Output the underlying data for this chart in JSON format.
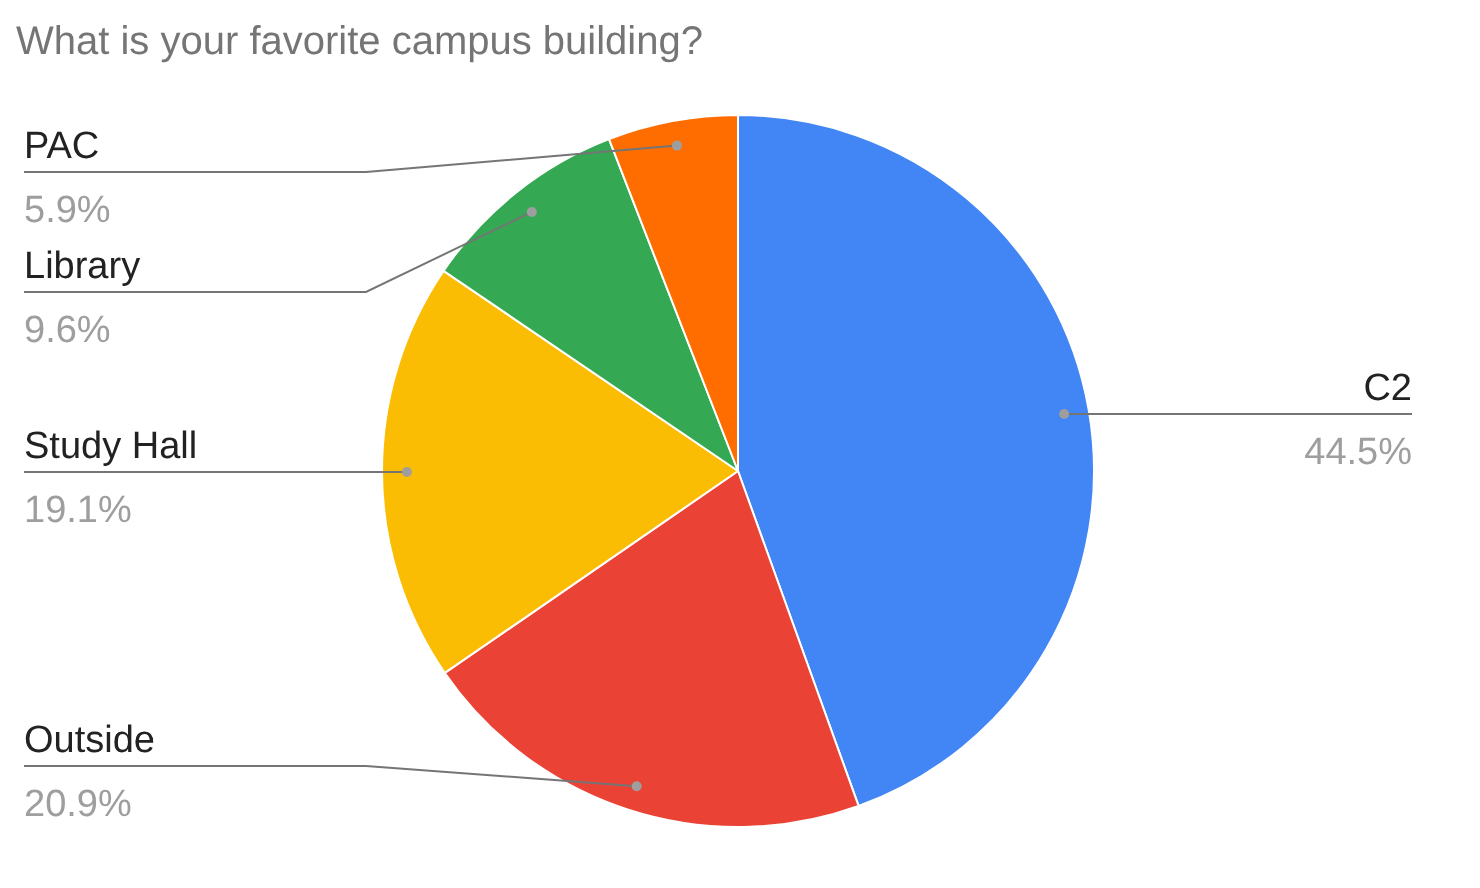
{
  "chart_data": {
    "type": "pie",
    "title": "What is your favorite campus building?",
    "categories": [
      "C2",
      "Outside",
      "Study Hall",
      "Library",
      "PAC"
    ],
    "values": [
      44.5,
      20.9,
      19.1,
      9.6,
      5.9
    ],
    "colors": [
      "#4285f4",
      "#ea4335",
      "#fbbc04",
      "#34a853",
      "#ff6d01"
    ],
    "value_labels": [
      "44.5%",
      "20.9%",
      "19.1%",
      "9.6%",
      "5.9%"
    ],
    "legend": false
  }
}
